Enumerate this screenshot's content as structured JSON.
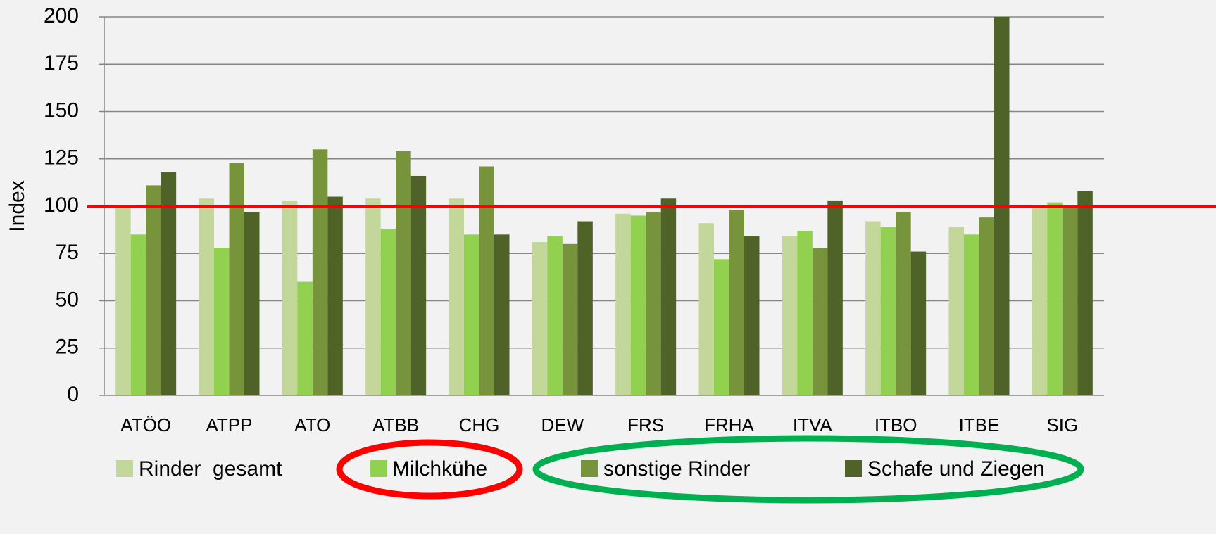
{
  "chart_data": {
    "type": "bar",
    "y_label": "Index",
    "categories": [
      "ATÖO",
      "ATPP",
      "ATO",
      "ATBB",
      "CHG",
      "DEW",
      "FRS",
      "FRHA",
      "ITVA",
      "ITBO",
      "ITBE",
      "SIG"
    ],
    "series": [
      {
        "name": "Rinder  gesamt",
        "color": "#c4d79b",
        "values": [
          100,
          104,
          103,
          104,
          104,
          81,
          96,
          91,
          84,
          92,
          89,
          100
        ]
      },
      {
        "name": "Milchkühe",
        "color": "#92d050",
        "values": [
          85,
          78,
          60,
          88,
          85,
          84,
          95,
          72,
          87,
          89,
          85,
          102
        ]
      },
      {
        "name": "sonstige Rinder",
        "color": "#77933c",
        "values": [
          111,
          123,
          130,
          129,
          121,
          80,
          97,
          98,
          78,
          97,
          94,
          100
        ]
      },
      {
        "name": "Schafe und Ziegen",
        "color": "#4f6228",
        "values": [
          118,
          97,
          105,
          116,
          85,
          92,
          104,
          84,
          103,
          76,
          200,
          108
        ]
      }
    ],
    "reference_line": {
      "value": 100,
      "color": "#ff0000"
    },
    "ylim": [
      0,
      200
    ],
    "yticks": [
      0,
      25,
      50,
      75,
      100,
      125,
      150,
      175,
      200
    ],
    "grid": true
  }
}
